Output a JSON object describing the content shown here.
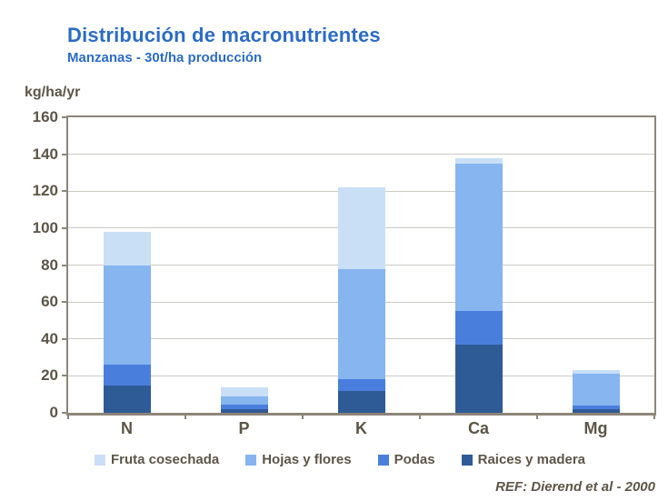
{
  "header": {
    "title": "Distribución de macronutrientes",
    "subtitle": "Manzanas - 30t/ha producción"
  },
  "footer": {
    "reference": "REF: Dierend et al - 2000"
  },
  "chart_data": {
    "type": "bar",
    "stacked": true,
    "title": "Distribución de macronutrientes",
    "subtitle": "Manzanas - 30t/ha producción",
    "ylabel": "kg/ha/yr",
    "xlabel": "",
    "ylim": [
      0,
      160
    ],
    "yticks": [
      0,
      20,
      40,
      60,
      80,
      100,
      120,
      140,
      160
    ],
    "grid": true,
    "legend_position": "bottom",
    "categories": [
      "N",
      "P",
      "K",
      "Ca",
      "Mg"
    ],
    "series": [
      {
        "name": "Raices y madera",
        "color": "#2e5a96",
        "values": [
          15,
          2,
          12,
          37,
          2
        ]
      },
      {
        "name": "Podas",
        "color": "#4a7edd",
        "values": [
          11,
          2.5,
          6,
          18,
          2
        ]
      },
      {
        "name": "Hojas y flores",
        "color": "#86b5f0",
        "values": [
          54,
          4.5,
          60,
          80,
          17
        ]
      },
      {
        "name": "Fruta cosechada",
        "color": "#c9dff6",
        "values": [
          18,
          5,
          44,
          3,
          2
        ]
      }
    ],
    "legend": [
      "Fruta cosechada",
      "Hojas y flores",
      "Podas",
      "Raices y madera"
    ],
    "totals": [
      98,
      14,
      122,
      138,
      23
    ]
  },
  "colors": {
    "title": "#2c6cc4",
    "axis_text": "#5d5547",
    "frame": "#8d8578",
    "gridline": "#cccac4"
  }
}
